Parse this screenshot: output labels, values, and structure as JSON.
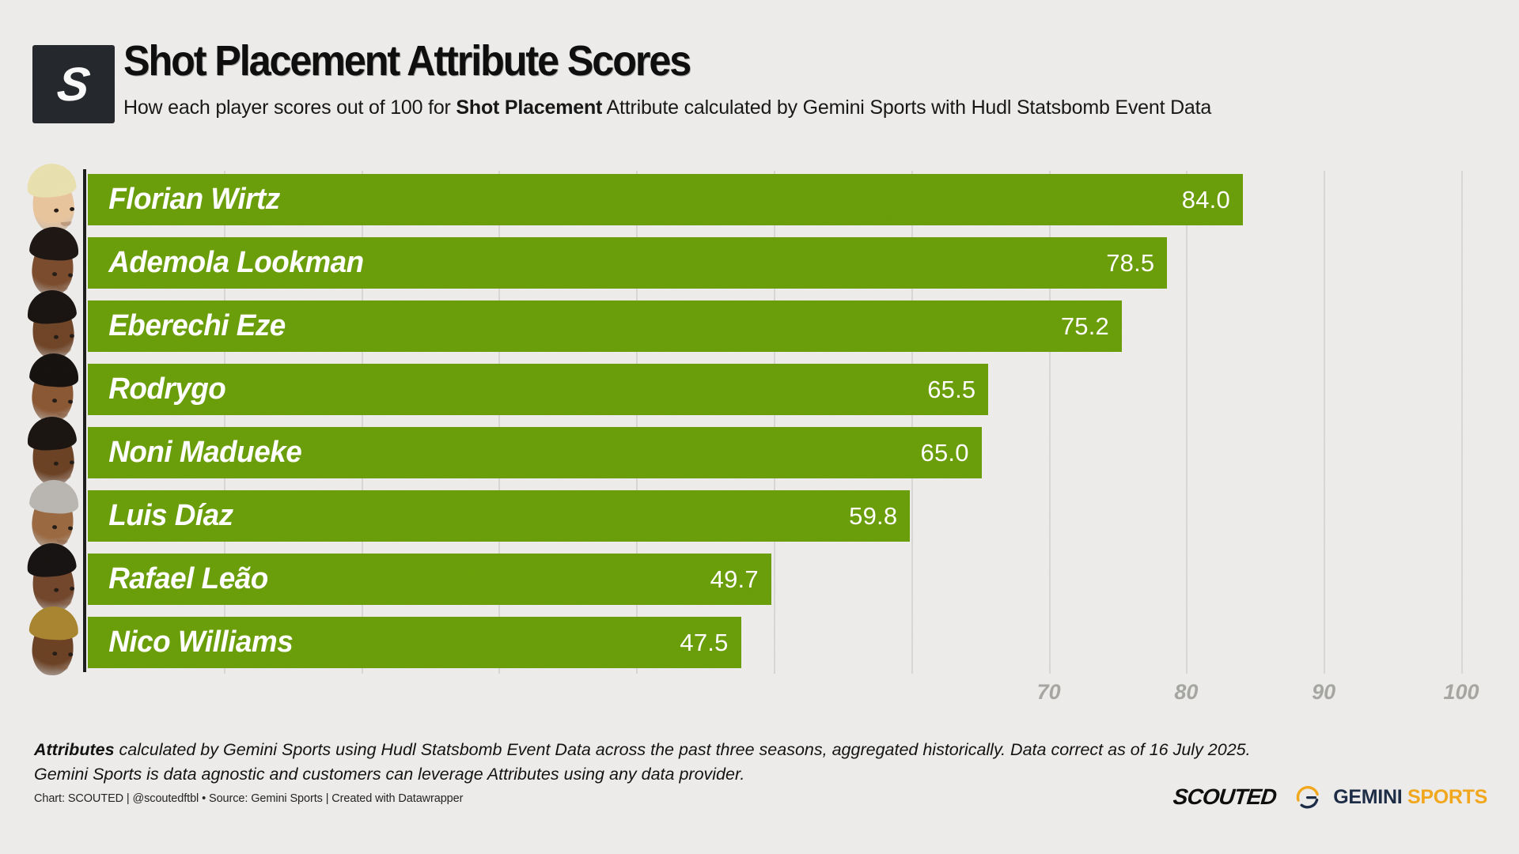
{
  "header": {
    "logo_letter": "S",
    "title": "Shot Placement Attribute Scores",
    "subtitle_prefix": "How each player scores out of 100 for ",
    "subtitle_bold": "Shot Placement",
    "subtitle_suffix": " Attribute calculated by Gemini Sports with Hudl Statsbomb Event Data"
  },
  "chart_data": {
    "type": "bar",
    "orientation": "horizontal",
    "title": "Shot Placement Attribute Scores",
    "categories": [
      "Florian Wirtz",
      "Ademola Lookman",
      "Eberechi Eze",
      "Rodrygo",
      "Noni Madueke",
      "Luis Díaz",
      "Rafael Leão",
      "Nico Williams"
    ],
    "values": [
      84.0,
      78.5,
      75.2,
      65.5,
      65.0,
      59.8,
      49.7,
      47.5
    ],
    "xlabel": "",
    "ylabel": "",
    "xlim": [
      0,
      100
    ],
    "gridline_step": 10,
    "grid": true,
    "legend": false,
    "axis_tick_labels": [
      "70",
      "80",
      "90",
      "100"
    ],
    "axis_tick_values": [
      70,
      80,
      90,
      100
    ],
    "bar_color": "#699d07",
    "value_label_color": "#ffffff"
  },
  "players": [
    {
      "name": "Florian Wirtz",
      "value_label": "84.0",
      "skin": "#e9c49c",
      "hair": "#e9e0ae",
      "tilt": -5
    },
    {
      "name": "Ademola Lookman",
      "value_label": "78.5",
      "skin": "#7a4a2b",
      "hair": "#1c1512",
      "tilt": 4
    },
    {
      "name": "Eberechi Eze",
      "value_label": "75.2",
      "skin": "#6e4326",
      "hair": "#171210",
      "tilt": -4
    },
    {
      "name": "Rodrygo",
      "value_label": "65.5",
      "skin": "#8a5632",
      "hair": "#14100e",
      "tilt": 4
    },
    {
      "name": "Noni Madueke",
      "value_label": "65.0",
      "skin": "#6b4023",
      "hair": "#191310",
      "tilt": -4
    },
    {
      "name": "Luis Díaz",
      "value_label": "59.8",
      "skin": "#9a6840",
      "hair": "#b9b6b2",
      "tilt": 4
    },
    {
      "name": "Rafael Leão",
      "value_label": "49.7",
      "skin": "#71452a",
      "hair": "#151110",
      "tilt": -5
    },
    {
      "name": "Nico Williams",
      "value_label": "47.5",
      "skin": "#6b4023",
      "hair": "#a8842e",
      "tilt": 3
    }
  ],
  "footer": {
    "note_bold": "Attributes",
    "note_line1_rest": " calculated by Gemini Sports using Hudl Statsbomb Event Data across the past three seasons, aggregated historically. Data correct as of 16 July 2025.",
    "note_line2": "Gemini Sports is data agnostic and customers can leverage Attributes using any data provider.",
    "byline": "Chart: SCOUTED | @scoutedftbl • Source: Gemini Sports | Created with Datawrapper"
  },
  "branding": {
    "scouted": "SCOUTED",
    "gemini": "GEMINI",
    "sports": "SPORTS",
    "gemini_color": "#1c2b45",
    "sports_color": "#f2a71b"
  },
  "colors": {
    "background": "#edecea",
    "bar": "#699d07",
    "gridline": "#d8d7d4",
    "axis": "#1b1b1b",
    "tick_label": "#a5a5a2",
    "logo_bg": "#23262b"
  }
}
